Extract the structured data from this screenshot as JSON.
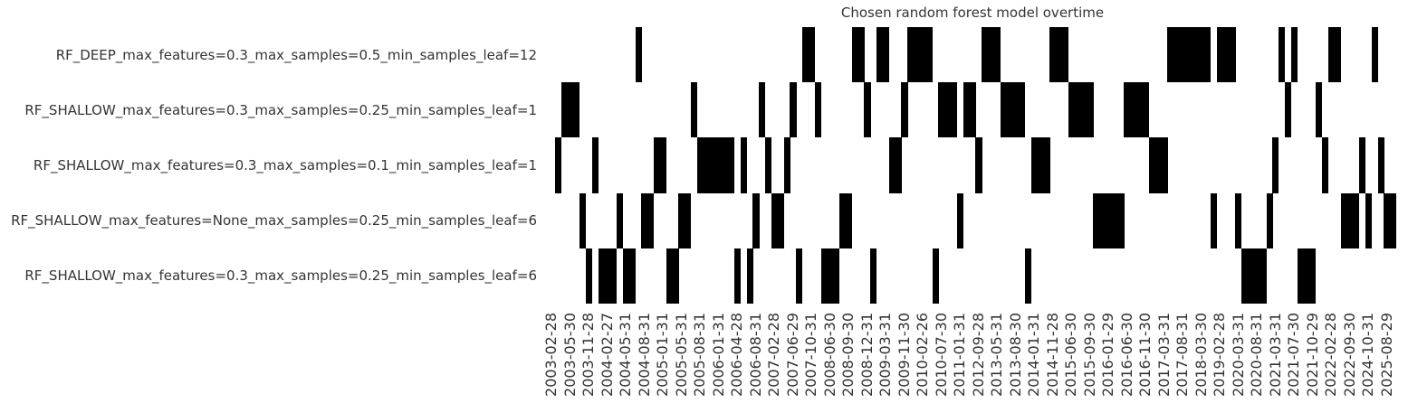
{
  "figure": {
    "title": "Chosen random forest model overtime"
  },
  "chart_data": {
    "type": "heatmap",
    "title": "Chosen random forest model overtime",
    "xlabel": "",
    "ylabel": "",
    "legend": "none",
    "grid": "off",
    "rows": [
      "RF_DEEP_max_features=0.3_max_samples=0.5_min_samples_leaf=12",
      "RF_SHALLOW_max_features=0.3_max_samples=0.25_min_samples_leaf=1",
      "RF_SHALLOW_max_features=0.3_max_samples=0.1_min_samples_leaf=1",
      "RF_SHALLOW_max_features=None_max_samples=0.25_min_samples_leaf=6",
      "RF_SHALLOW_max_features=0.3_max_samples=0.25_min_samples_leaf=6"
    ],
    "columns": 137,
    "tick_every_n_columns": 3,
    "x_tick_labels": [
      "2003-02-28",
      "2003-05-30",
      "2003-11-28",
      "2004-02-27",
      "2004-05-31",
      "2004-08-31",
      "2005-01-31",
      "2005-05-31",
      "2005-08-31",
      "2006-01-31",
      "2006-04-28",
      "2006-08-31",
      "2007-02-28",
      "2007-06-29",
      "2007-10-31",
      "2008-06-30",
      "2008-09-30",
      "2008-12-31",
      "2009-03-31",
      "2009-11-30",
      "2010-02-26",
      "2010-07-30",
      "2011-01-31",
      "2012-09-28",
      "2013-05-31",
      "2013-08-30",
      "2014-01-31",
      "2014-11-28",
      "2015-06-30",
      "2015-09-30",
      "2016-01-29",
      "2016-06-30",
      "2016-11-30",
      "2017-03-31",
      "2017-08-31",
      "2018-03-30",
      "2019-02-28",
      "2020-03-31",
      "2020-08-31",
      "2021-03-31",
      "2021-07-30",
      "2021-10-29",
      "2022-02-28",
      "2022-09-30",
      "2024-10-31",
      "2025-08-29"
    ],
    "cell_row_by_column": [
      0,
      3,
      2,
      2,
      2,
      4,
      5,
      3,
      5,
      5,
      5,
      4,
      5,
      5,
      1,
      4,
      4,
      3,
      3,
      5,
      5,
      4,
      4,
      2,
      3,
      3,
      3,
      3,
      3,
      3,
      5,
      3,
      5,
      4,
      2,
      3,
      4,
      4,
      3,
      2,
      5,
      1,
      1,
      2,
      5,
      5,
      5,
      4,
      4,
      1,
      1,
      2,
      5,
      1,
      1,
      3,
      3,
      2,
      1,
      1,
      1,
      1,
      5,
      2,
      2,
      2,
      4,
      2,
      2,
      3,
      1,
      1,
      1,
      2,
      2,
      2,
      2,
      5,
      3,
      3,
      3,
      1,
      1,
      1,
      2,
      2,
      2,
      2,
      4,
      4,
      4,
      4,
      4,
      2,
      2,
      2,
      2,
      3,
      3,
      3,
      1,
      1,
      1,
      1,
      1,
      1,
      1,
      4,
      1,
      1,
      1,
      4,
      5,
      5,
      5,
      5,
      4,
      3,
      1,
      2,
      1,
      5,
      5,
      5,
      2,
      3,
      1,
      1,
      4,
      4,
      4,
      3,
      4,
      1,
      3,
      4,
      4
    ],
    "colors": {
      "selected": "#000000",
      "not_selected": "#ffffff",
      "text": "#343434"
    }
  }
}
